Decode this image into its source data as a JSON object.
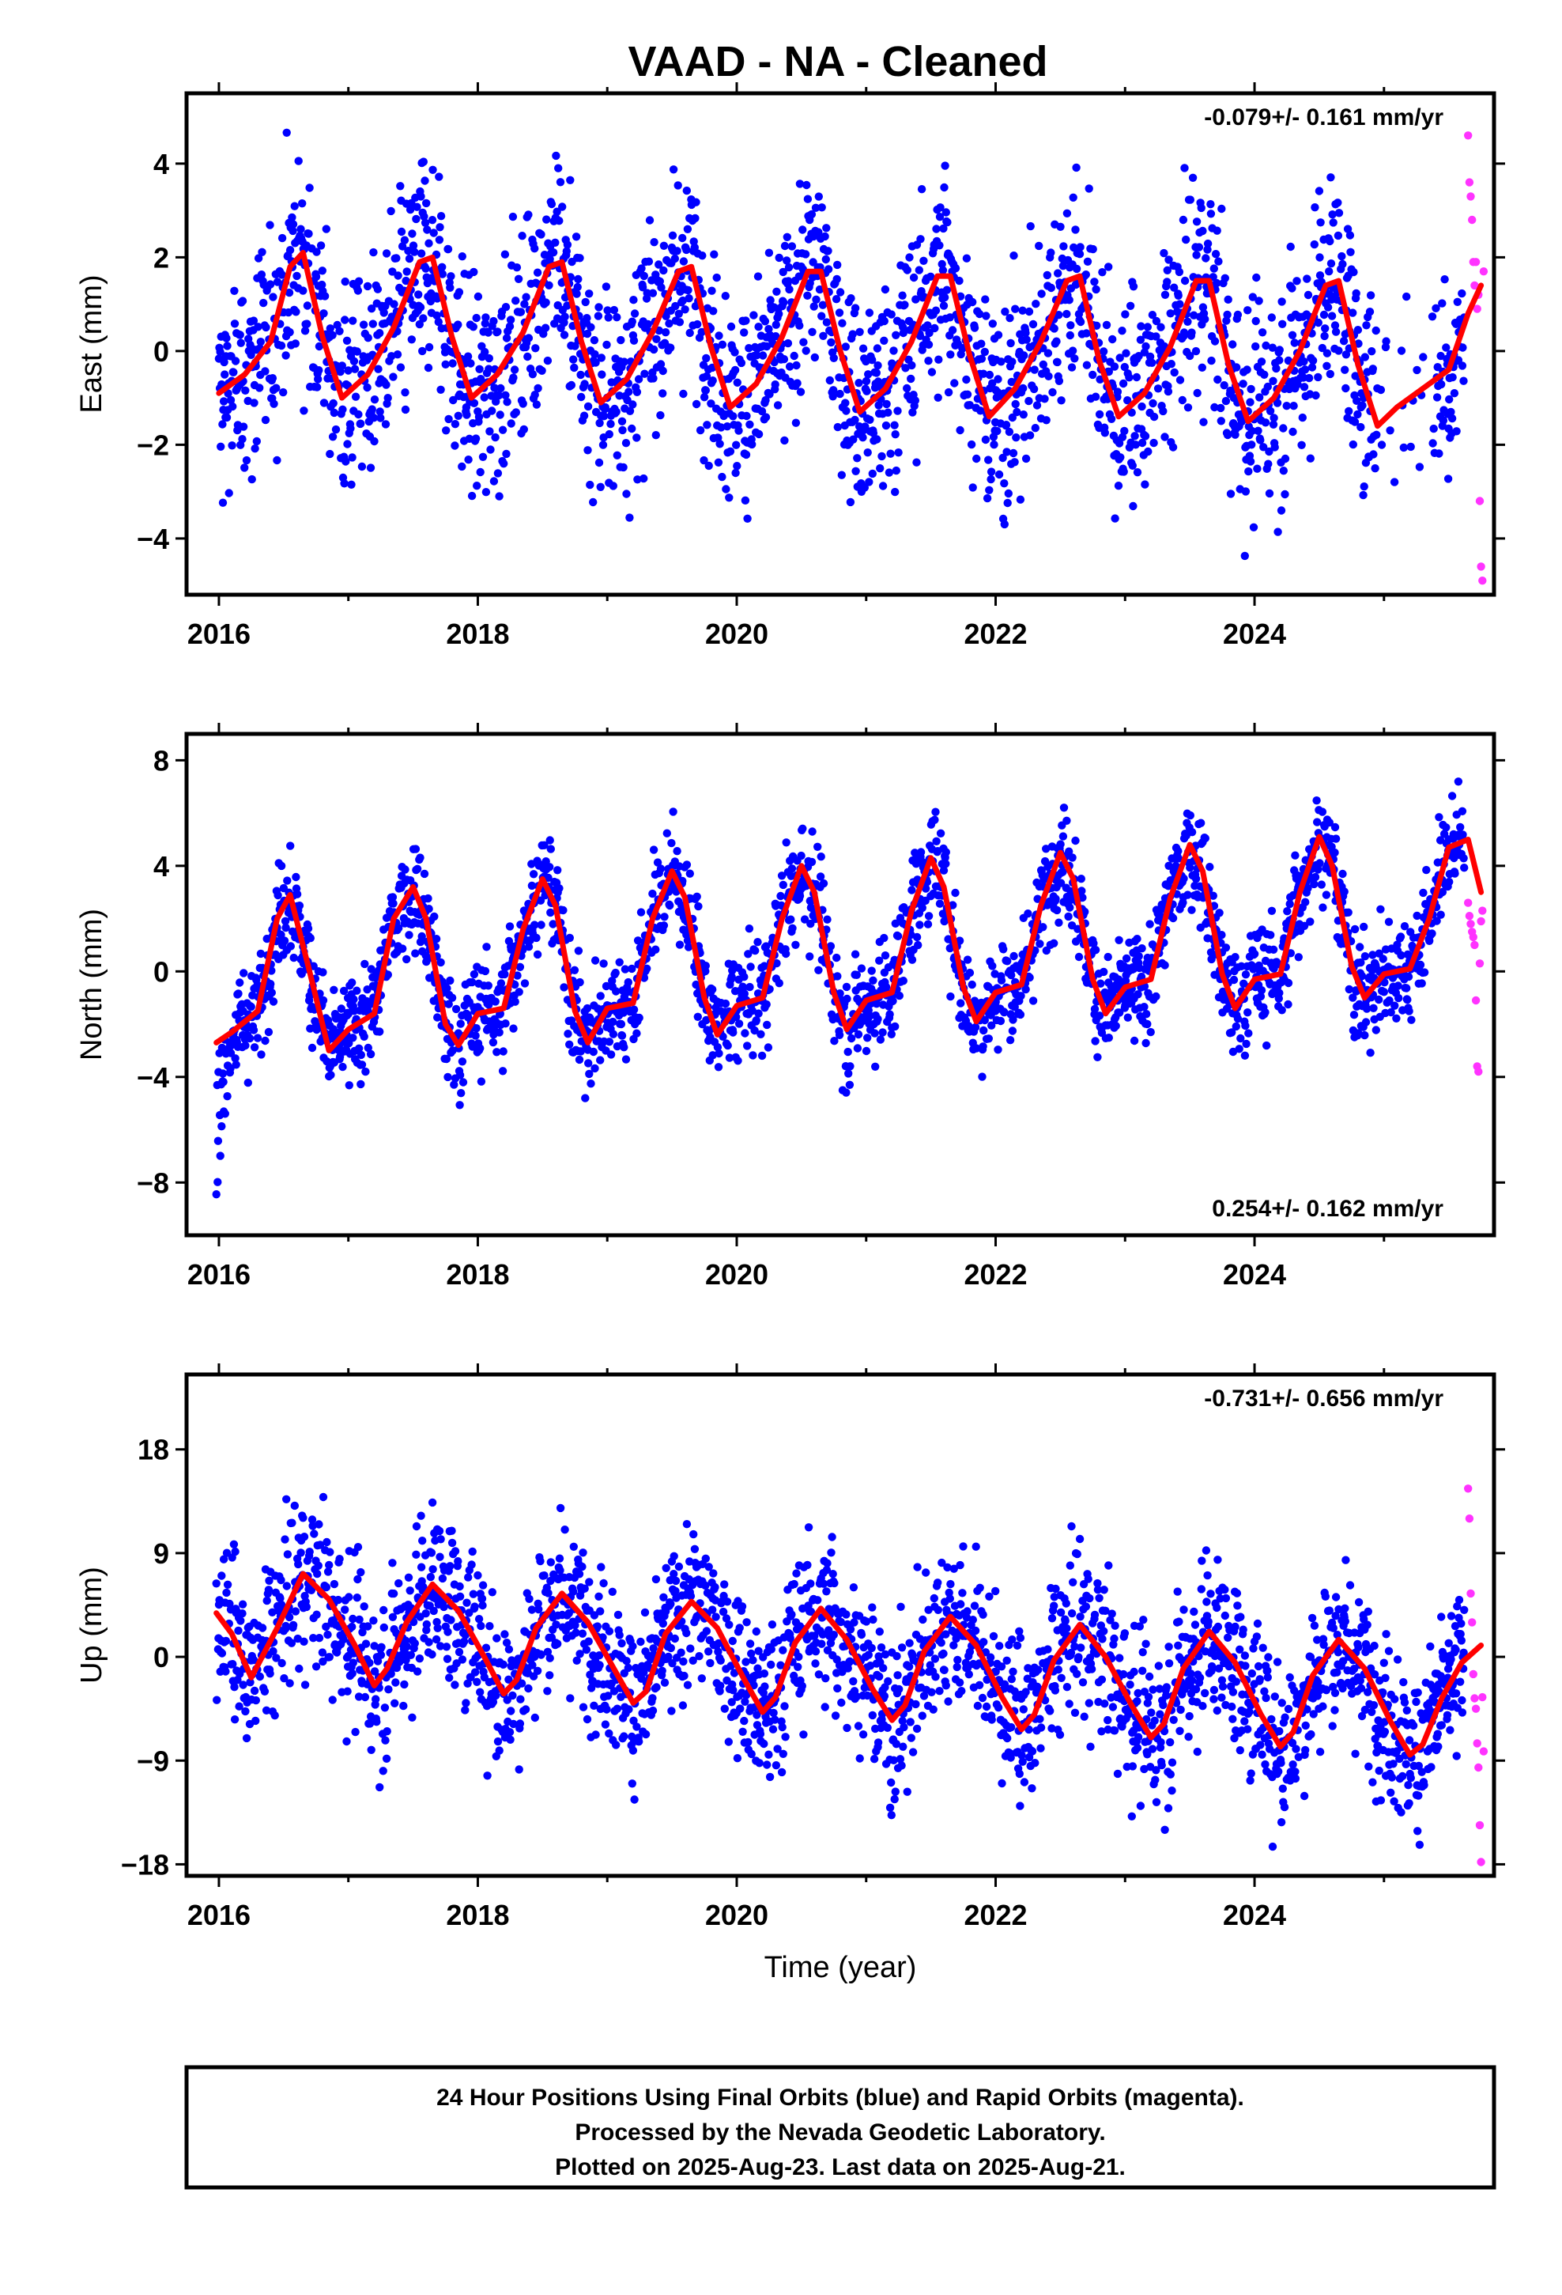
{
  "title": "VAAD  - NA - Cleaned",
  "colors": {
    "final": "#0000ff",
    "rapid": "#ff33ff",
    "model": "#ff0000",
    "frame": "#000000"
  },
  "chart_data": [
    {
      "type": "scatter",
      "component": "East",
      "ylabel": "East (mm)",
      "xlabel": "",
      "rate": "-0.079+/- 0.161 mm/yr",
      "rate_position": "top-right",
      "xlim": [
        2015.75,
        2025.85
      ],
      "ylim": [
        -5.2,
        5.5
      ],
      "xticks": [
        2016,
        2018,
        2020,
        2022,
        2024
      ],
      "xtick_labels": [
        "2016",
        "2018",
        "2020",
        "2022",
        "2024"
      ],
      "yticks": [
        -4,
        -2,
        0,
        2,
        4
      ],
      "ytick_labels": [
        "−4",
        "−2",
        "0",
        "2",
        "4"
      ],
      "model_series": {
        "name": "seasonal fit",
        "x": [
          2016.0,
          2016.2,
          2016.4,
          2016.55,
          2016.65,
          2016.8,
          2016.95,
          2017.15,
          2017.35,
          2017.55,
          2017.65,
          2017.8,
          2017.95,
          2018.15,
          2018.35,
          2018.55,
          2018.65,
          2018.8,
          2018.95,
          2019.15,
          2019.35,
          2019.55,
          2019.65,
          2019.8,
          2019.95,
          2020.15,
          2020.35,
          2020.55,
          2020.65,
          2020.8,
          2020.95,
          2021.15,
          2021.35,
          2021.55,
          2021.65,
          2021.8,
          2021.95,
          2022.15,
          2022.35,
          2022.55,
          2022.65,
          2022.8,
          2022.95,
          2023.15,
          2023.35,
          2023.55,
          2023.65,
          2023.8,
          2023.95,
          2024.15,
          2024.35,
          2024.55,
          2024.65,
          2024.8,
          2024.95,
          2025.1,
          2025.3,
          2025.5,
          2025.65,
          2025.75
        ],
        "y": [
          -0.9,
          -0.5,
          0.2,
          1.8,
          2.1,
          0.3,
          -1.0,
          -0.5,
          0.5,
          1.9,
          2.0,
          0.3,
          -1.0,
          -0.5,
          0.4,
          1.8,
          1.9,
          0.2,
          -1.1,
          -0.6,
          0.4,
          1.7,
          1.8,
          0.1,
          -1.2,
          -0.7,
          0.3,
          1.7,
          1.7,
          0.0,
          -1.3,
          -0.8,
          0.2,
          1.6,
          1.6,
          -0.1,
          -1.4,
          -0.8,
          0.2,
          1.5,
          1.6,
          -0.2,
          -1.4,
          -0.9,
          0.1,
          1.5,
          1.5,
          -0.3,
          -1.5,
          -1.0,
          0.0,
          1.4,
          1.5,
          -0.3,
          -1.6,
          -1.2,
          -0.8,
          -0.4,
          0.8,
          1.4
        ]
      },
      "rapid_points": {
        "name": "Rapid Orbits",
        "x": [
          2025.65,
          2025.66,
          2025.67,
          2025.68,
          2025.69,
          2025.7,
          2025.71,
          2025.72,
          2025.73,
          2025.74,
          2025.75,
          2025.76,
          2025.77
        ],
        "y": [
          4.6,
          3.6,
          3.3,
          2.8,
          1.9,
          1.4,
          1.9,
          0.9,
          1.2,
          -3.2,
          -4.6,
          -4.9,
          1.7
        ]
      }
    },
    {
      "type": "scatter",
      "component": "North",
      "ylabel": "North (mm)",
      "xlabel": "",
      "rate": "0.254+/- 0.162 mm/yr",
      "rate_position": "bottom-right",
      "xlim": [
        2015.75,
        2025.85
      ],
      "ylim": [
        -10.0,
        9.0
      ],
      "xticks": [
        2016,
        2018,
        2020,
        2022,
        2024
      ],
      "xtick_labels": [
        "2016",
        "2018",
        "2020",
        "2022",
        "2024"
      ],
      "yticks": [
        -8,
        -4,
        0,
        4,
        8
      ],
      "ytick_labels": [
        "−8",
        "−4",
        "0",
        "4",
        "8"
      ],
      "model_series": {
        "name": "seasonal fit",
        "x": [
          2015.98,
          2016.1,
          2016.3,
          2016.45,
          2016.55,
          2016.7,
          2016.85,
          2017.0,
          2017.2,
          2017.35,
          2017.5,
          2017.6,
          2017.75,
          2017.85,
          2018.0,
          2018.2,
          2018.35,
          2018.5,
          2018.6,
          2018.75,
          2018.85,
          2019.0,
          2019.2,
          2019.35,
          2019.5,
          2019.6,
          2019.75,
          2019.85,
          2020.0,
          2020.2,
          2020.35,
          2020.5,
          2020.6,
          2020.75,
          2020.85,
          2021.0,
          2021.2,
          2021.35,
          2021.5,
          2021.6,
          2021.75,
          2021.85,
          2022.0,
          2022.2,
          2022.35,
          2022.5,
          2022.6,
          2022.75,
          2022.85,
          2023.0,
          2023.2,
          2023.35,
          2023.5,
          2023.6,
          2023.75,
          2023.85,
          2024.0,
          2024.2,
          2024.35,
          2024.5,
          2024.6,
          2024.75,
          2024.85,
          2025.0,
          2025.2,
          2025.35,
          2025.5,
          2025.65,
          2025.75
        ],
        "y": [
          -2.7,
          -2.3,
          -1.5,
          2.0,
          2.9,
          0.0,
          -3.0,
          -2.2,
          -1.6,
          2.0,
          3.2,
          2.0,
          -2.0,
          -2.8,
          -1.6,
          -1.4,
          1.6,
          3.5,
          2.5,
          -1.5,
          -2.7,
          -1.4,
          -1.2,
          2.0,
          3.8,
          2.8,
          -1.0,
          -2.4,
          -1.3,
          -1.0,
          2.0,
          4.0,
          3.0,
          -0.8,
          -2.2,
          -1.1,
          -0.8,
          2.3,
          4.3,
          3.2,
          -0.6,
          -1.9,
          -0.8,
          -0.5,
          2.5,
          4.5,
          3.5,
          -0.3,
          -1.6,
          -0.6,
          -0.3,
          2.8,
          4.8,
          3.8,
          -0.1,
          -1.4,
          -0.3,
          -0.1,
          3.0,
          5.1,
          4.0,
          0.2,
          -1.0,
          -0.1,
          0.1,
          2.0,
          4.7,
          5.0,
          3.0
        ]
      },
      "rapid_points": {
        "name": "Rapid Orbits",
        "x": [
          2025.65,
          2025.66,
          2025.67,
          2025.68,
          2025.69,
          2025.7,
          2025.71,
          2025.72,
          2025.73,
          2025.74,
          2025.75,
          2025.76
        ],
        "y": [
          2.6,
          2.1,
          1.8,
          1.5,
          1.3,
          1.0,
          -1.1,
          -3.6,
          -3.8,
          0.3,
          1.9,
          2.3
        ]
      }
    },
    {
      "type": "scatter",
      "component": "Up",
      "ylabel": "Up (mm)",
      "xlabel": "Time (year)",
      "rate": "-0.731+/- 0.656 mm/yr",
      "rate_position": "top-right",
      "xlim": [
        2015.75,
        2025.85
      ],
      "ylim": [
        -19.0,
        24.5
      ],
      "xticks": [
        2016,
        2018,
        2020,
        2022,
        2024
      ],
      "xtick_labels": [
        "2016",
        "2018",
        "2020",
        "2022",
        "2024"
      ],
      "yticks": [
        -18,
        -9,
        0,
        9,
        18
      ],
      "ytick_labels": [
        "−18",
        "−9",
        "0",
        "9",
        "18"
      ],
      "model_series": {
        "name": "seasonal fit",
        "x": [
          2015.98,
          2016.1,
          2016.25,
          2016.45,
          2016.65,
          2016.85,
          2017.05,
          2017.2,
          2017.3,
          2017.45,
          2017.65,
          2017.85,
          2018.05,
          2018.2,
          2018.3,
          2018.45,
          2018.65,
          2018.85,
          2019.05,
          2019.2,
          2019.3,
          2019.45,
          2019.65,
          2019.85,
          2020.05,
          2020.2,
          2020.3,
          2020.45,
          2020.65,
          2020.85,
          2021.05,
          2021.2,
          2021.3,
          2021.45,
          2021.65,
          2021.85,
          2022.05,
          2022.2,
          2022.3,
          2022.45,
          2022.65,
          2022.85,
          2023.05,
          2023.2,
          2023.3,
          2023.45,
          2023.65,
          2023.85,
          2024.05,
          2024.2,
          2024.3,
          2024.45,
          2024.65,
          2024.85,
          2025.05,
          2025.2,
          2025.3,
          2025.45,
          2025.6,
          2025.75
        ],
        "y": [
          3.8,
          2.0,
          -1.8,
          2.5,
          7.2,
          5.0,
          1.0,
          -2.5,
          -1.0,
          3.0,
          6.3,
          4.0,
          0.0,
          -3.2,
          -2.0,
          2.5,
          5.5,
          3.0,
          -1.0,
          -4.0,
          -3.0,
          2.0,
          4.8,
          2.5,
          -1.8,
          -4.8,
          -3.5,
          1.2,
          4.2,
          1.5,
          -2.8,
          -5.5,
          -4.2,
          0.5,
          3.5,
          1.0,
          -3.5,
          -6.3,
          -5.0,
          -0.3,
          2.8,
          0.0,
          -4.2,
          -7.0,
          -5.8,
          -1.0,
          2.2,
          -0.5,
          -5.0,
          -7.8,
          -6.5,
          -1.6,
          1.5,
          -1.0,
          -5.6,
          -8.5,
          -7.6,
          -3.5,
          -0.5,
          1.0
        ]
      },
      "rapid_points": {
        "name": "Rapid Orbits",
        "x": [
          2025.65,
          2025.66,
          2025.67,
          2025.68,
          2025.69,
          2025.7,
          2025.71,
          2025.72,
          2025.73,
          2025.74,
          2025.75,
          2025.76,
          2025.77
        ],
        "y": [
          14.6,
          12.0,
          5.5,
          3.0,
          -1.5,
          -3.6,
          -4.5,
          -7.5,
          -9.6,
          -14.6,
          -17.8,
          -3.5,
          -8.2
        ]
      }
    }
  ],
  "footer": {
    "line1": "24 Hour Positions Using Final Orbits (blue) and Rapid Orbits (magenta).",
    "line2": "Processed by the Nevada Geodetic Laboratory.",
    "line3": "Plotted on 2025-Aug-23. Last data on 2025-Aug-21."
  }
}
